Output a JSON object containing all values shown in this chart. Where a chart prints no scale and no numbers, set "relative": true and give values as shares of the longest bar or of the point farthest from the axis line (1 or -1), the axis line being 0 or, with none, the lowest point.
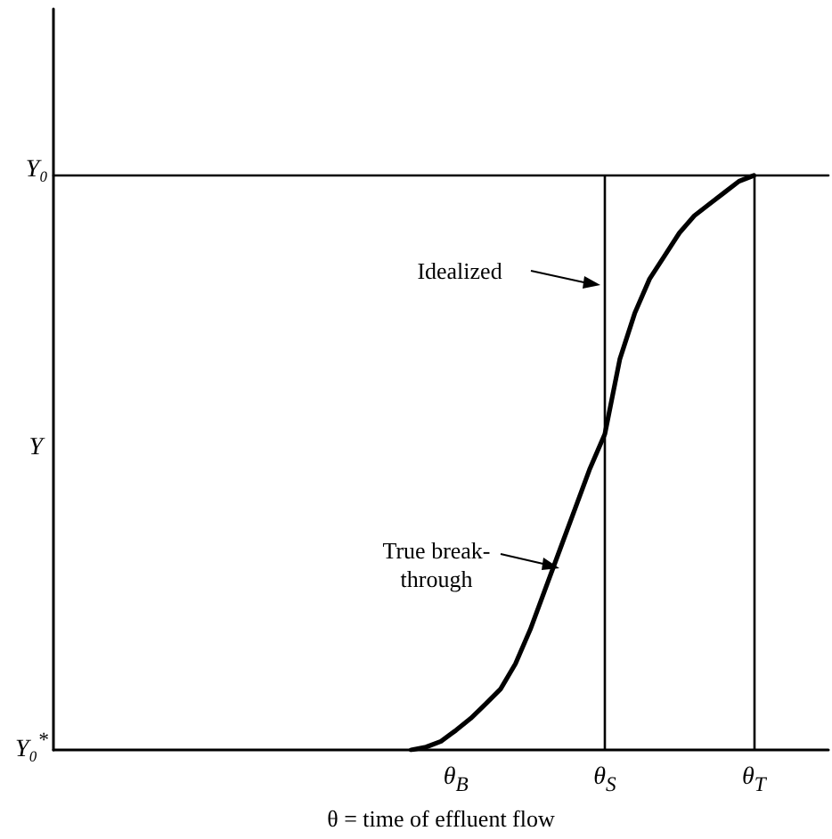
{
  "chart_data": {
    "type": "line",
    "relative": true,
    "xlabel": "θ = time of effluent flow",
    "categories": [
      null,
      null,
      null,
      null,
      null,
      null,
      null,
      null,
      null,
      null,
      null,
      null,
      null,
      null,
      null,
      null,
      null,
      null,
      null,
      null,
      null,
      null,
      null,
      null,
      null,
      null,
      null,
      "θ$_{B}$",
      null,
      null,
      null,
      null,
      null,
      null,
      null,
      null,
      null,
      "θ$_{S}$",
      null,
      null,
      null,
      null,
      null,
      null,
      null,
      null,
      null,
      "θ$_{T}$",
      null,
      null,
      null,
      null,
      null
    ],
    "series": [
      {
        "color": "#000000",
        "values": [
          null,
          null,
          null,
          null,
          null,
          null,
          null,
          null,
          null,
          null,
          null,
          null,
          null,
          null,
          null,
          null,
          null,
          null,
          null,
          null,
          null,
          null,
          null,
          null,
          0,
          0.005,
          0.015,
          0.034,
          0.055,
          0.08,
          0.106,
          0.15,
          0.21,
          0.28,
          0.35,
          0.42,
          0.49,
          0.55,
          0.68,
          0.76,
          0.82,
          0.86,
          0.9,
          0.93,
          0.95,
          0.97,
          0.99,
          1,
          null,
          null,
          null,
          null,
          null
        ]
      },
      {
        "color": "#000000",
        "values": [
          1,
          1,
          1,
          1,
          1,
          1,
          1,
          1,
          1,
          1,
          1,
          1,
          1,
          1,
          1,
          1,
          1,
          1,
          1,
          1,
          1,
          1,
          1,
          1,
          1,
          1,
          1,
          1,
          1,
          1,
          1,
          1,
          1,
          1,
          1,
          1,
          1,
          1,
          1,
          1,
          1,
          1,
          1,
          1,
          1,
          1,
          1,
          1,
          1,
          1,
          1,
          1,
          1
        ]
      }
    ],
    "ref_lines": [
      {
        "axis": "x",
        "value": "θ$_{S}$"
      },
      {
        "axis": "x",
        "value": "θ$_{T}$"
      }
    ],
    "annotations": [
      "Y₀",
      "Y",
      "Y₀$^{*}$",
      "Idealized",
      "True break-\nthrough"
    ],
    "grid": false,
    "line_style": "solid"
  }
}
